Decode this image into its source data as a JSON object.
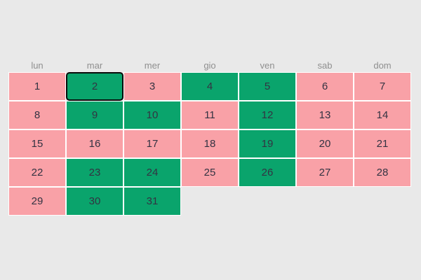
{
  "weekday_header": {
    "labels": [
      "lun",
      "mar",
      "mer",
      "gio",
      "ven",
      "sab",
      "dom"
    ]
  },
  "calendar": {
    "days": [
      {
        "number": "1",
        "state": "pink",
        "selected": false
      },
      {
        "number": "2",
        "state": "green",
        "selected": true
      },
      {
        "number": "3",
        "state": "pink",
        "selected": false
      },
      {
        "number": "4",
        "state": "green",
        "selected": false
      },
      {
        "number": "5",
        "state": "green",
        "selected": false
      },
      {
        "number": "6",
        "state": "pink",
        "selected": false
      },
      {
        "number": "7",
        "state": "pink",
        "selected": false
      },
      {
        "number": "8",
        "state": "pink",
        "selected": false
      },
      {
        "number": "9",
        "state": "green",
        "selected": false
      },
      {
        "number": "10",
        "state": "green",
        "selected": false
      },
      {
        "number": "11",
        "state": "pink",
        "selected": false
      },
      {
        "number": "12",
        "state": "green",
        "selected": false
      },
      {
        "number": "13",
        "state": "pink",
        "selected": false
      },
      {
        "number": "14",
        "state": "pink",
        "selected": false
      },
      {
        "number": "15",
        "state": "pink",
        "selected": false
      },
      {
        "number": "16",
        "state": "pink",
        "selected": false
      },
      {
        "number": "17",
        "state": "pink",
        "selected": false
      },
      {
        "number": "18",
        "state": "pink",
        "selected": false
      },
      {
        "number": "19",
        "state": "green",
        "selected": false
      },
      {
        "number": "20",
        "state": "pink",
        "selected": false
      },
      {
        "number": "21",
        "state": "pink",
        "selected": false
      },
      {
        "number": "22",
        "state": "pink",
        "selected": false
      },
      {
        "number": "23",
        "state": "green",
        "selected": false
      },
      {
        "number": "24",
        "state": "green",
        "selected": false
      },
      {
        "number": "25",
        "state": "pink",
        "selected": false
      },
      {
        "number": "26",
        "state": "green",
        "selected": false
      },
      {
        "number": "27",
        "state": "pink",
        "selected": false
      },
      {
        "number": "28",
        "state": "pink",
        "selected": false
      },
      {
        "number": "29",
        "state": "pink",
        "selected": false
      },
      {
        "number": "30",
        "state": "green",
        "selected": false
      },
      {
        "number": "31",
        "state": "green",
        "selected": false
      }
    ]
  },
  "colors": {
    "page_background": "#e9e9e9",
    "pink": "#f9a1a7",
    "green": "#0aa46c",
    "gap": "#ffffff",
    "day_text": "#333342",
    "weekday_text": "#8f8f8f",
    "selected_border": "#0a0a0a"
  }
}
